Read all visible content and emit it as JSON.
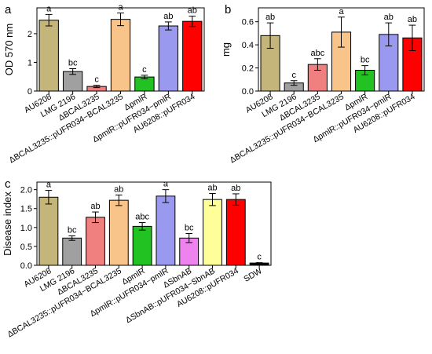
{
  "chart_data": [
    {
      "panel_label": "a",
      "type": "bar",
      "ylabel": "OD 570 nm",
      "ylim": [
        0,
        2.9
      ],
      "yticks": [
        0,
        1,
        2
      ],
      "categories": [
        "AU6208",
        "LMG 2196",
        "ΔBCAL3235",
        "ΔBCAL3235::pUFR034−BCAL3235",
        "ΔpmlR",
        "ΔpmlR::pUFR034−pmlR",
        "AU6208::pUFR034"
      ],
      "values": [
        2.47,
        0.68,
        0.16,
        2.5,
        0.49,
        2.27,
        2.43
      ],
      "errors": [
        0.2,
        0.1,
        0.04,
        0.22,
        0.06,
        0.14,
        0.18
      ],
      "letters": [
        "a",
        "bc",
        "c",
        "a",
        "c",
        "ab",
        "ab"
      ],
      "colors": [
        "#c4b57a",
        "#a0a0a0",
        "#f08080",
        "#f9c48a",
        "#22c222",
        "#9999f0",
        "#ff0000"
      ],
      "grid": false
    },
    {
      "panel_label": "b",
      "type": "bar",
      "ylabel": "mg",
      "ylim": [
        0,
        0.72
      ],
      "yticks": [
        0,
        0.2,
        0.4,
        0.6
      ],
      "ytick_labels": [
        "0.0",
        "0.2",
        "0.4",
        "0.6"
      ],
      "categories": [
        "AU6208",
        "LMG 2196",
        "ΔBCAL3235",
        "ΔBCAL3235::pUFR034−BCAL3235",
        "ΔpmlR",
        "ΔpmlR::pUFR034−pmlR",
        "AU6208::pUFR034"
      ],
      "values": [
        0.48,
        0.07,
        0.23,
        0.51,
        0.18,
        0.49,
        0.46
      ],
      "errors": [
        0.11,
        0.02,
        0.05,
        0.13,
        0.04,
        0.1,
        0.11
      ],
      "letters": [
        "ab",
        "c",
        "abc",
        "a",
        "bc",
        "ab",
        "ab"
      ],
      "colors": [
        "#c4b57a",
        "#a0a0a0",
        "#f08080",
        "#f9c48a",
        "#22c222",
        "#9999f0",
        "#ff0000"
      ],
      "grid": false
    },
    {
      "panel_label": "c",
      "type": "bar",
      "ylabel": "Disease index",
      "ylim": [
        0,
        2.2
      ],
      "yticks": [
        0,
        0.5,
        1,
        1.5,
        2
      ],
      "ytick_labels": [
        "0.0",
        "0.5",
        "1.0",
        "1.5",
        "2.0"
      ],
      "categories": [
        "AU6208",
        "LMG 2196",
        "ΔBCAL3235",
        "ΔBCAL3235::pUFR034−BCAL3235",
        "ΔpmlR",
        "ΔpmlR::pUFR034−pmlR",
        "ΔSbnAB",
        "ΔSbnAB::pUFR034−SbnAB",
        "AU6208::pUFR034",
        "SDW"
      ],
      "values": [
        1.8,
        0.72,
        1.27,
        1.72,
        1.03,
        1.83,
        0.72,
        1.74,
        1.74,
        0.06
      ],
      "errors": [
        0.18,
        0.06,
        0.14,
        0.14,
        0.1,
        0.17,
        0.12,
        0.16,
        0.15,
        0.01
      ],
      "letters": [
        "a",
        "bc",
        "ab",
        "ab",
        "abc",
        "a",
        "bc",
        "ab",
        "ab",
        "c"
      ],
      "colors": [
        "#c4b57a",
        "#a0a0a0",
        "#f08080",
        "#f9c48a",
        "#22c222",
        "#9999f0",
        "#ee82ee",
        "#ffff99",
        "#ff0000",
        "#000000"
      ],
      "grid": false
    }
  ]
}
